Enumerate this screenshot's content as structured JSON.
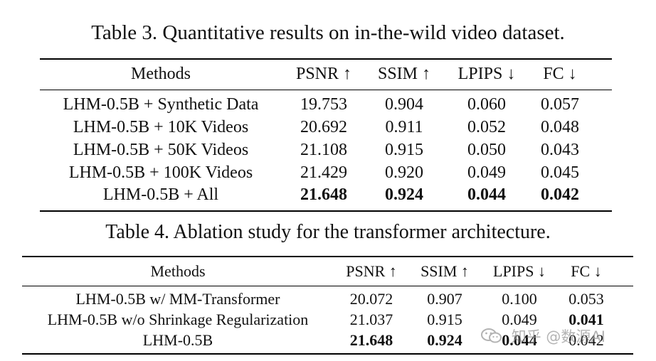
{
  "table3": {
    "caption": "Table 3. Quantitative results on in-the-wild video dataset.",
    "headers": [
      "Methods",
      "PSNR ↑",
      "SSIM ↑",
      "LPIPS ↓",
      "FC ↓"
    ],
    "rows": [
      {
        "method": "LHM-0.5B + Synthetic Data",
        "psnr": "19.753",
        "ssim": "0.904",
        "lpips": "0.060",
        "fc": "0.057"
      },
      {
        "method": "LHM-0.5B + 10K Videos",
        "psnr": "20.692",
        "ssim": "0.911",
        "lpips": "0.052",
        "fc": "0.048"
      },
      {
        "method": "LHM-0.5B + 50K Videos",
        "psnr": "21.108",
        "ssim": "0.915",
        "lpips": "0.050",
        "fc": "0.043"
      },
      {
        "method": "LHM-0.5B + 100K Videos",
        "psnr": "21.429",
        "ssim": "0.920",
        "lpips": "0.049",
        "fc": "0.045"
      },
      {
        "method": "LHM-0.5B + All",
        "psnr": "21.648",
        "ssim": "0.924",
        "lpips": "0.044",
        "fc": "0.042"
      }
    ]
  },
  "table4": {
    "caption": "Table 4. Ablation study for the transformer architecture.",
    "headers": [
      "Methods",
      "PSNR ↑",
      "SSIM ↑",
      "LPIPS ↓",
      "FC ↓"
    ],
    "rows": [
      {
        "method": "LHM-0.5B w/ MM-Transformer",
        "psnr": "20.072",
        "ssim": "0.907",
        "lpips": "0.100",
        "fc": "0.053"
      },
      {
        "method": "LHM-0.5B w/o Shrinkage Regularization",
        "psnr": "21.037",
        "ssim": "0.915",
        "lpips": "0.049",
        "fc": "0.041"
      },
      {
        "method": "LHM-0.5B",
        "psnr": "21.648",
        "ssim": "0.924",
        "lpips": "0.044",
        "fc": "0.042"
      }
    ]
  },
  "watermark": {
    "text": "知乎 @数源AI",
    "icon": "wechat-icon"
  }
}
